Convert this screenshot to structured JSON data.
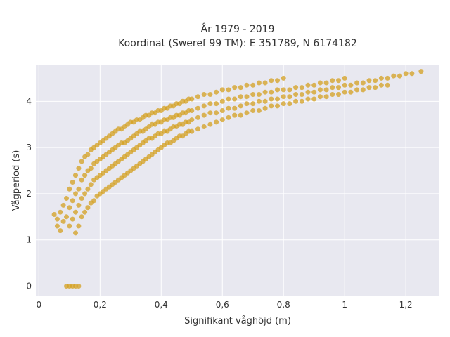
{
  "chart_data": {
    "type": "scatter",
    "title": "År 1979 - 2019",
    "subtitle": "Koordinat (Sweref 99 TM): E 351789, N 6174182",
    "xlabel": "Signifikant våghöjd (m)",
    "ylabel": "Vågperiod (s)",
    "xlim": [
      -0.01,
      1.31
    ],
    "ylim": [
      -0.22,
      4.78
    ],
    "xticks": [
      0,
      0.2,
      0.4,
      0.6,
      0.8,
      1,
      1.2
    ],
    "xtick_labels": [
      "0",
      "0,2",
      "0,4",
      "0,6",
      "0,8",
      "1",
      "1,2"
    ],
    "yticks": [
      0,
      1,
      2,
      3,
      4
    ],
    "ytick_labels": [
      "0",
      "1",
      "2",
      "3",
      "4"
    ],
    "grid": true,
    "legend": "none",
    "marker_color": "#D4A020",
    "background_color": "#E8E8F0",
    "points": [
      [
        0.05,
        1.55
      ],
      [
        0.06,
        1.45
      ],
      [
        0.06,
        1.3
      ],
      [
        0.07,
        1.6
      ],
      [
        0.07,
        1.2
      ],
      [
        0.08,
        1.75
      ],
      [
        0.08,
        1.4
      ],
      [
        0.09,
        1.9
      ],
      [
        0.09,
        1.5
      ],
      [
        0.1,
        2.1
      ],
      [
        0.1,
        1.7
      ],
      [
        0.1,
        1.3
      ],
      [
        0.11,
        2.25
      ],
      [
        0.11,
        1.85
      ],
      [
        0.11,
        1.45
      ],
      [
        0.12,
        2.4
      ],
      [
        0.12,
        2.0
      ],
      [
        0.12,
        1.6
      ],
      [
        0.12,
        1.15
      ],
      [
        0.13,
        2.55
      ],
      [
        0.13,
        2.1
      ],
      [
        0.13,
        1.75
      ],
      [
        0.13,
        1.3
      ],
      [
        0.14,
        2.7
      ],
      [
        0.14,
        2.3
      ],
      [
        0.14,
        1.9
      ],
      [
        0.14,
        1.5
      ],
      [
        0.15,
        2.8
      ],
      [
        0.15,
        2.4
      ],
      [
        0.15,
        2.0
      ],
      [
        0.15,
        1.6
      ],
      [
        0.16,
        2.85
      ],
      [
        0.16,
        2.5
      ],
      [
        0.16,
        2.1
      ],
      [
        0.16,
        1.7
      ],
      [
        0.17,
        2.95
      ],
      [
        0.17,
        2.55
      ],
      [
        0.17,
        2.2
      ],
      [
        0.17,
        1.8
      ],
      [
        0.18,
        3.0
      ],
      [
        0.18,
        2.65
      ],
      [
        0.18,
        2.3
      ],
      [
        0.18,
        1.85
      ],
      [
        0.19,
        3.05
      ],
      [
        0.19,
        2.7
      ],
      [
        0.19,
        2.35
      ],
      [
        0.19,
        1.95
      ],
      [
        0.2,
        3.1
      ],
      [
        0.2,
        2.75
      ],
      [
        0.2,
        2.4
      ],
      [
        0.2,
        2.0
      ],
      [
        0.21,
        3.15
      ],
      [
        0.21,
        2.8
      ],
      [
        0.21,
        2.45
      ],
      [
        0.21,
        2.05
      ],
      [
        0.22,
        3.2
      ],
      [
        0.22,
        2.85
      ],
      [
        0.22,
        2.5
      ],
      [
        0.22,
        2.1
      ],
      [
        0.23,
        3.25
      ],
      [
        0.23,
        2.9
      ],
      [
        0.23,
        2.55
      ],
      [
        0.23,
        2.15
      ],
      [
        0.24,
        3.3
      ],
      [
        0.24,
        2.95
      ],
      [
        0.24,
        2.6
      ],
      [
        0.24,
        2.2
      ],
      [
        0.25,
        3.35
      ],
      [
        0.25,
        3.0
      ],
      [
        0.25,
        2.65
      ],
      [
        0.25,
        2.25
      ],
      [
        0.26,
        3.4
      ],
      [
        0.26,
        3.05
      ],
      [
        0.26,
        2.7
      ],
      [
        0.26,
        2.3
      ],
      [
        0.27,
        3.4
      ],
      [
        0.27,
        3.1
      ],
      [
        0.27,
        2.75
      ],
      [
        0.27,
        2.35
      ],
      [
        0.28,
        3.45
      ],
      [
        0.28,
        3.1
      ],
      [
        0.28,
        2.8
      ],
      [
        0.28,
        2.4
      ],
      [
        0.29,
        3.5
      ],
      [
        0.29,
        3.15
      ],
      [
        0.29,
        2.85
      ],
      [
        0.29,
        2.45
      ],
      [
        0.3,
        3.55
      ],
      [
        0.3,
        3.2
      ],
      [
        0.3,
        2.9
      ],
      [
        0.3,
        2.5
      ],
      [
        0.31,
        3.55
      ],
      [
        0.31,
        3.25
      ],
      [
        0.31,
        2.95
      ],
      [
        0.31,
        2.55
      ],
      [
        0.32,
        3.6
      ],
      [
        0.32,
        3.3
      ],
      [
        0.32,
        3.0
      ],
      [
        0.32,
        2.6
      ],
      [
        0.33,
        3.6
      ],
      [
        0.33,
        3.35
      ],
      [
        0.33,
        3.05
      ],
      [
        0.33,
        2.65
      ],
      [
        0.34,
        3.65
      ],
      [
        0.34,
        3.35
      ],
      [
        0.34,
        3.1
      ],
      [
        0.34,
        2.7
      ],
      [
        0.35,
        3.7
      ],
      [
        0.35,
        3.4
      ],
      [
        0.35,
        3.15
      ],
      [
        0.35,
        2.75
      ],
      [
        0.36,
        3.7
      ],
      [
        0.36,
        3.45
      ],
      [
        0.36,
        3.2
      ],
      [
        0.36,
        2.8
      ],
      [
        0.37,
        3.75
      ],
      [
        0.37,
        3.5
      ],
      [
        0.37,
        3.2
      ],
      [
        0.37,
        2.85
      ],
      [
        0.38,
        3.75
      ],
      [
        0.38,
        3.5
      ],
      [
        0.38,
        3.25
      ],
      [
        0.38,
        2.9
      ],
      [
        0.39,
        3.8
      ],
      [
        0.39,
        3.55
      ],
      [
        0.39,
        3.3
      ],
      [
        0.39,
        2.95
      ],
      [
        0.4,
        3.8
      ],
      [
        0.4,
        3.55
      ],
      [
        0.4,
        3.3
      ],
      [
        0.4,
        3.0
      ],
      [
        0.41,
        3.85
      ],
      [
        0.41,
        3.6
      ],
      [
        0.41,
        3.35
      ],
      [
        0.41,
        3.05
      ],
      [
        0.42,
        3.85
      ],
      [
        0.42,
        3.6
      ],
      [
        0.42,
        3.35
      ],
      [
        0.42,
        3.1
      ],
      [
        0.43,
        3.9
      ],
      [
        0.43,
        3.65
      ],
      [
        0.43,
        3.4
      ],
      [
        0.43,
        3.1
      ],
      [
        0.44,
        3.9
      ],
      [
        0.44,
        3.65
      ],
      [
        0.44,
        3.45
      ],
      [
        0.44,
        3.15
      ],
      [
        0.45,
        3.95
      ],
      [
        0.45,
        3.7
      ],
      [
        0.45,
        3.45
      ],
      [
        0.45,
        3.2
      ],
      [
        0.46,
        3.95
      ],
      [
        0.46,
        3.7
      ],
      [
        0.46,
        3.5
      ],
      [
        0.46,
        3.25
      ],
      [
        0.47,
        4.0
      ],
      [
        0.47,
        3.75
      ],
      [
        0.47,
        3.5
      ],
      [
        0.47,
        3.25
      ],
      [
        0.48,
        4.0
      ],
      [
        0.48,
        3.75
      ],
      [
        0.48,
        3.55
      ],
      [
        0.48,
        3.3
      ],
      [
        0.49,
        4.05
      ],
      [
        0.49,
        3.8
      ],
      [
        0.49,
        3.55
      ],
      [
        0.49,
        3.35
      ],
      [
        0.5,
        4.05
      ],
      [
        0.5,
        3.8
      ],
      [
        0.5,
        3.6
      ],
      [
        0.5,
        3.35
      ],
      [
        0.52,
        4.1
      ],
      [
        0.52,
        3.85
      ],
      [
        0.52,
        3.65
      ],
      [
        0.52,
        3.4
      ],
      [
        0.54,
        4.15
      ],
      [
        0.54,
        3.9
      ],
      [
        0.54,
        3.7
      ],
      [
        0.54,
        3.45
      ],
      [
        0.56,
        4.15
      ],
      [
        0.56,
        3.95
      ],
      [
        0.56,
        3.75
      ],
      [
        0.56,
        3.5
      ],
      [
        0.58,
        4.2
      ],
      [
        0.58,
        3.95
      ],
      [
        0.58,
        3.75
      ],
      [
        0.58,
        3.55
      ],
      [
        0.6,
        4.25
      ],
      [
        0.6,
        4.0
      ],
      [
        0.6,
        3.8
      ],
      [
        0.6,
        3.6
      ],
      [
        0.62,
        4.25
      ],
      [
        0.62,
        4.05
      ],
      [
        0.62,
        3.85
      ],
      [
        0.62,
        3.65
      ],
      [
        0.64,
        4.3
      ],
      [
        0.64,
        4.05
      ],
      [
        0.64,
        3.85
      ],
      [
        0.64,
        3.7
      ],
      [
        0.66,
        4.3
      ],
      [
        0.66,
        4.1
      ],
      [
        0.66,
        3.9
      ],
      [
        0.66,
        3.7
      ],
      [
        0.68,
        4.35
      ],
      [
        0.68,
        4.1
      ],
      [
        0.68,
        3.95
      ],
      [
        0.68,
        3.75
      ],
      [
        0.7,
        4.35
      ],
      [
        0.7,
        4.15
      ],
      [
        0.7,
        3.95
      ],
      [
        0.7,
        3.8
      ],
      [
        0.72,
        4.4
      ],
      [
        0.72,
        4.15
      ],
      [
        0.72,
        4.0
      ],
      [
        0.72,
        3.8
      ],
      [
        0.74,
        4.4
      ],
      [
        0.74,
        4.2
      ],
      [
        0.74,
        4.0
      ],
      [
        0.74,
        3.85
      ],
      [
        0.76,
        4.45
      ],
      [
        0.76,
        4.2
      ],
      [
        0.76,
        4.05
      ],
      [
        0.76,
        3.9
      ],
      [
        0.78,
        4.45
      ],
      [
        0.78,
        4.25
      ],
      [
        0.78,
        4.05
      ],
      [
        0.78,
        3.9
      ],
      [
        0.8,
        4.5
      ],
      [
        0.8,
        4.25
      ],
      [
        0.8,
        4.1
      ],
      [
        0.8,
        3.95
      ],
      [
        0.82,
        4.25
      ],
      [
        0.82,
        4.1
      ],
      [
        0.82,
        3.95
      ],
      [
        0.84,
        4.3
      ],
      [
        0.84,
        4.15
      ],
      [
        0.84,
        4.0
      ],
      [
        0.86,
        4.3
      ],
      [
        0.86,
        4.15
      ],
      [
        0.86,
        4.0
      ],
      [
        0.88,
        4.35
      ],
      [
        0.88,
        4.2
      ],
      [
        0.88,
        4.05
      ],
      [
        0.9,
        4.35
      ],
      [
        0.9,
        4.2
      ],
      [
        0.9,
        4.05
      ],
      [
        0.92,
        4.4
      ],
      [
        0.92,
        4.25
      ],
      [
        0.92,
        4.1
      ],
      [
        0.94,
        4.4
      ],
      [
        0.94,
        4.25
      ],
      [
        0.94,
        4.1
      ],
      [
        0.96,
        4.45
      ],
      [
        0.96,
        4.3
      ],
      [
        0.96,
        4.15
      ],
      [
        0.98,
        4.45
      ],
      [
        0.98,
        4.3
      ],
      [
        0.98,
        4.15
      ],
      [
        1.0,
        4.5
      ],
      [
        1.0,
        4.35
      ],
      [
        1.0,
        4.2
      ],
      [
        1.02,
        4.35
      ],
      [
        1.02,
        4.2
      ],
      [
        1.04,
        4.4
      ],
      [
        1.04,
        4.25
      ],
      [
        1.06,
        4.4
      ],
      [
        1.06,
        4.25
      ],
      [
        1.08,
        4.45
      ],
      [
        1.08,
        4.3
      ],
      [
        1.1,
        4.45
      ],
      [
        1.1,
        4.3
      ],
      [
        1.12,
        4.5
      ],
      [
        1.12,
        4.35
      ],
      [
        1.14,
        4.5
      ],
      [
        1.14,
        4.35
      ],
      [
        1.16,
        4.55
      ],
      [
        1.18,
        4.55
      ],
      [
        1.2,
        4.6
      ],
      [
        1.22,
        4.6
      ],
      [
        1.25,
        4.65
      ],
      [
        0.09,
        0.0
      ],
      [
        0.1,
        0.0
      ],
      [
        0.11,
        0.0
      ],
      [
        0.12,
        0.0
      ],
      [
        0.13,
        0.0
      ]
    ]
  }
}
